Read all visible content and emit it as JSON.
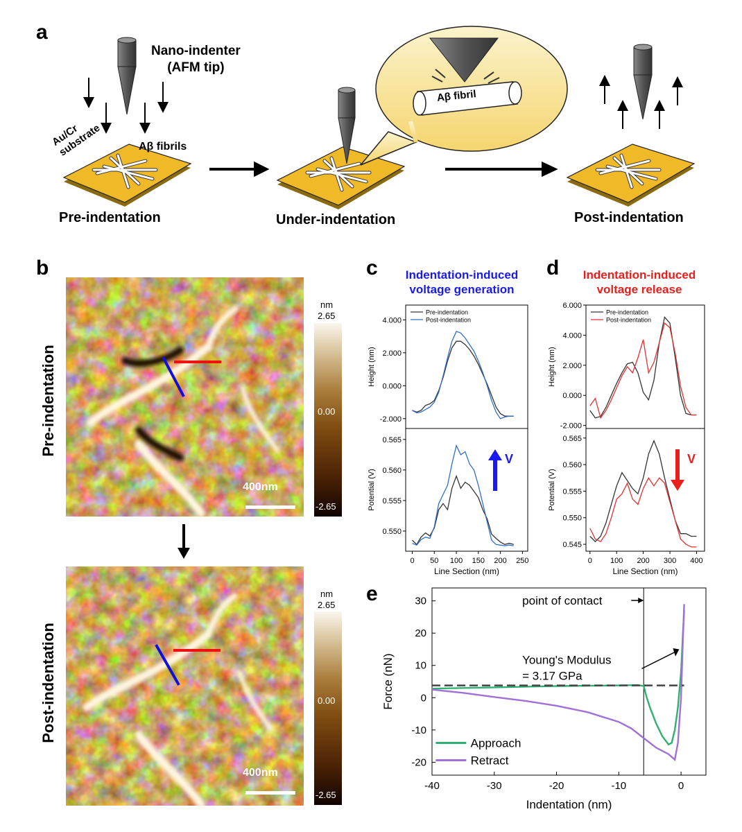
{
  "panel_labels": {
    "a": "a",
    "b": "b",
    "c": "c",
    "d": "d",
    "e": "e"
  },
  "panel_a": {
    "nano_indenter_line1": "Nano-indenter",
    "nano_indenter_line2": "(AFM tip)",
    "substrate_line1": "Au/Cr",
    "substrate_line2": "substrate",
    "fibrils_label": "Aβ fibrils",
    "bubble_label": "Aβ fibril",
    "stage_pre": "Pre-indentation",
    "stage_under": "Under-indentation",
    "stage_post": "Post-indentation"
  },
  "panel_b": {
    "row_pre": "Pre-indentation",
    "row_post": "Post-indentation",
    "scale_bar": "400nm",
    "colorbar": {
      "unit": "nm",
      "max": "2.65",
      "mid": "0.00",
      "min": "-2.65",
      "colors": [
        "#100300",
        "#4a2205",
        "#7d4a10",
        "#a97d3b",
        "#d8c39a",
        "#fbf7ee"
      ]
    },
    "line_colors": {
      "blue": "#1010d8",
      "red": "#ee1111"
    }
  },
  "chart_data": [
    {
      "panel": "c",
      "type": "line",
      "title_line1": "Indentation-induced",
      "title_line2": "voltage generation",
      "title_color": "#1a1aee",
      "xlabel": "Line Section (nm)",
      "xlim": [
        -15,
        262
      ],
      "xticks": [
        "0",
        "50",
        "100",
        "150",
        "200",
        "250"
      ],
      "upper": {
        "ylabel": "Height (nm)",
        "ylim": [
          -2.6,
          4.9
        ],
        "yticks": [
          "-2.000",
          "0.000",
          "2.000",
          "4.000"
        ],
        "series": [
          {
            "name": "Pre-indentation",
            "color": "#333333",
            "x": [
              0,
              10,
              20,
              30,
              40,
              50,
              60,
              70,
              80,
              90,
              100,
              110,
              120,
              130,
              140,
              150,
              160,
              170,
              180,
              190,
              200,
              210,
              220,
              230
            ],
            "y": [
              -1.5,
              -1.6,
              -1.5,
              -1.2,
              -1.1,
              -0.9,
              -0.3,
              0.5,
              1.5,
              2.3,
              2.7,
              2.7,
              2.5,
              2.2,
              1.8,
              1.3,
              0.7,
              0.1,
              -0.6,
              -1.3,
              -1.7,
              -1.85,
              -1.85,
              -1.85
            ]
          },
          {
            "name": "Post-indentation",
            "color": "#2f6fc8",
            "x": [
              0,
              10,
              20,
              30,
              40,
              50,
              60,
              70,
              80,
              90,
              100,
              110,
              120,
              130,
              140,
              150,
              160,
              170,
              180,
              190,
              200,
              210,
              220,
              230
            ],
            "y": [
              -1.5,
              -1.65,
              -1.6,
              -1.45,
              -1.3,
              -1.0,
              -0.4,
              0.6,
              1.7,
              2.7,
              3.3,
              3.2,
              2.9,
              2.5,
              2.1,
              1.5,
              0.8,
              0.0,
              -0.9,
              -1.6,
              -2.0,
              -1.9,
              -1.85,
              -1.85
            ]
          }
        ]
      },
      "lower": {
        "ylabel": "Potential (V)",
        "ylim": [
          0.5467,
          0.5668
        ],
        "yticks": [
          "0.550",
          "0.555",
          "0.560",
          "0.565"
        ],
        "arrow_label": "V",
        "series": [
          {
            "name": "Pre-indentation",
            "color": "#333333",
            "x": [
              0,
              10,
              20,
              30,
              40,
              50,
              60,
              70,
              80,
              90,
              100,
              110,
              120,
              130,
              140,
              150,
              160,
              170,
              180,
              190,
              200,
              210,
              220,
              230
            ],
            "y": [
              0.5485,
              0.5478,
              0.549,
              0.5497,
              0.5492,
              0.5505,
              0.5535,
              0.5545,
              0.5535,
              0.557,
              0.559,
              0.557,
              0.558,
              0.5575,
              0.5565,
              0.5555,
              0.5535,
              0.552,
              0.5495,
              0.5488,
              0.5482,
              0.5478,
              0.548,
              0.5478
            ]
          },
          {
            "name": "Post-indentation",
            "color": "#2f6fc8",
            "x": [
              0,
              10,
              20,
              30,
              40,
              50,
              60,
              70,
              80,
              90,
              100,
              110,
              120,
              130,
              140,
              150,
              160,
              170,
              180,
              190,
              200,
              210,
              220,
              230
            ],
            "y": [
              0.548,
              0.5477,
              0.5486,
              0.549,
              0.5488,
              0.5507,
              0.5545,
              0.556,
              0.5575,
              0.561,
              0.564,
              0.5625,
              0.563,
              0.561,
              0.56,
              0.5575,
              0.5545,
              0.5515,
              0.5485,
              0.5478,
              0.5477,
              0.5476,
              0.5477,
              0.5476
            ]
          }
        ]
      }
    },
    {
      "panel": "d",
      "type": "line",
      "title_line1": "Indentation-induced",
      "title_line2": "voltage release",
      "title_color": "#e8201c",
      "xlabel": "Line Section (nm)",
      "xlim": [
        -15,
        430
      ],
      "xticks": [
        "0",
        "100",
        "200",
        "300",
        "400"
      ],
      "upper": {
        "ylabel": "Height (nm)",
        "ylim": [
          -2.2,
          6.0
        ],
        "yticks": [
          "-2.000",
          "0.000",
          "2.000",
          "4.000",
          "6.000"
        ],
        "series": [
          {
            "name": "Pre-indentation",
            "color": "#333333",
            "x": [
              0,
              20,
              40,
              60,
              80,
              100,
              120,
              140,
              160,
              180,
              200,
              220,
              240,
              260,
              280,
              300,
              320,
              340,
              360,
              380,
              400
            ],
            "y": [
              -1.0,
              -1.5,
              -1.4,
              -0.8,
              0.0,
              0.8,
              1.5,
              2.1,
              2.2,
              1.5,
              0.2,
              -0.3,
              1.0,
              3.5,
              5.2,
              4.8,
              2.5,
              0.0,
              -1.2,
              -1.3,
              -1.3
            ]
          },
          {
            "name": "Post-indentation",
            "color": "#e03030",
            "x": [
              0,
              20,
              40,
              60,
              80,
              100,
              120,
              140,
              160,
              180,
              200,
              220,
              240,
              260,
              280,
              300,
              320,
              340,
              360,
              380,
              400
            ],
            "y": [
              -0.7,
              -0.2,
              -1.5,
              -1.0,
              -0.3,
              0.5,
              1.3,
              1.9,
              1.5,
              2.5,
              3.7,
              1.5,
              2.2,
              3.5,
              4.8,
              4.5,
              2.8,
              0.6,
              -0.8,
              -1.3,
              -1.3
            ]
          }
        ]
      },
      "lower": {
        "ylabel": "Potential (V)",
        "ylim": [
          0.5437,
          0.5668
        ],
        "yticks": [
          "0.545",
          "0.550",
          "0.555",
          "0.560",
          "0.565"
        ],
        "arrow_label": "V",
        "series": [
          {
            "name": "Pre-indentation",
            "color": "#333333",
            "x": [
              0,
              20,
              40,
              60,
              80,
              100,
              120,
              140,
              160,
              180,
              200,
              220,
              240,
              260,
              280,
              300,
              320,
              340,
              360,
              380,
              400
            ],
            "y": [
              0.5465,
              0.5455,
              0.5465,
              0.549,
              0.5525,
              0.556,
              0.5585,
              0.557,
              0.5555,
              0.5545,
              0.5575,
              0.562,
              0.5645,
              0.562,
              0.5575,
              0.5535,
              0.5495,
              0.547,
              0.547,
              0.5465,
              0.5465
            ]
          },
          {
            "name": "Post-indentation",
            "color": "#e03030",
            "x": [
              0,
              20,
              40,
              60,
              80,
              100,
              120,
              140,
              160,
              180,
              200,
              220,
              240,
              260,
              280,
              300,
              320,
              340,
              360,
              380,
              400
            ],
            "y": [
              0.548,
              0.546,
              0.5455,
              0.547,
              0.55,
              0.5535,
              0.5545,
              0.5565,
              0.5535,
              0.5525,
              0.5555,
              0.5575,
              0.556,
              0.5575,
              0.5565,
              0.553,
              0.5495,
              0.546,
              0.545,
              0.5445,
              0.5445
            ]
          }
        ]
      }
    },
    {
      "panel": "e",
      "type": "line",
      "xlabel": "Indentation (nm)",
      "ylabel": "Force (nN)",
      "xlim": [
        -40,
        4
      ],
      "ylim": [
        -24,
        34
      ],
      "xticks": [
        -40,
        -30,
        -20,
        -10,
        0
      ],
      "yticks": [
        -20,
        -10,
        0,
        10,
        20,
        30
      ],
      "contact_x": -6,
      "baseline_y": 3.8,
      "annotations": {
        "contact": "point of contact",
        "modulus_line1": "Young's Modulus",
        "modulus_line2": "= 3.17 GPa"
      },
      "series": [
        {
          "name": "Approach",
          "color": "#2fb070",
          "x": [
            -40,
            -35,
            -30,
            -25,
            -20,
            -15,
            -10,
            -7,
            -6,
            -5.5,
            -5,
            -4,
            -3,
            -2,
            -1.5,
            -1,
            -0.5,
            0,
            0.3,
            0.5
          ],
          "y": [
            2.8,
            3.0,
            3.2,
            3.4,
            3.6,
            3.7,
            3.8,
            3.9,
            3.6,
            0,
            -3,
            -8,
            -12,
            -14.5,
            -14,
            -10,
            -3,
            8,
            20,
            27
          ]
        },
        {
          "name": "Retract",
          "color": "#a070d8",
          "x": [
            -40,
            -35,
            -30,
            -25,
            -20,
            -15,
            -10,
            -8,
            -6,
            -4,
            -2,
            -1,
            -0.5,
            0,
            0.3,
            0.5
          ],
          "y": [
            2.5,
            1.5,
            0.2,
            -1.0,
            -2.5,
            -4.5,
            -7.5,
            -9.5,
            -12.5,
            -15.5,
            -17.5,
            -19.2,
            -14,
            0,
            18,
            29
          ]
        }
      ]
    }
  ]
}
